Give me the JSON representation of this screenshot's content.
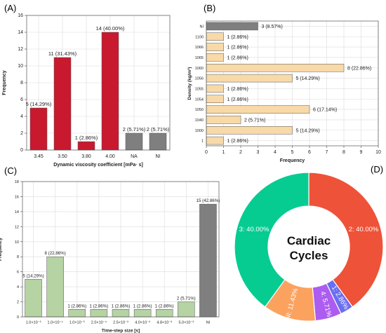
{
  "panel_labels": [
    "(A)",
    "(B)",
    "(C)",
    "(D)"
  ],
  "chart_data": [
    {
      "type": "bar",
      "panel": "(A)",
      "xlabel": "Dynamic viscosity coefficient [mPa· s]",
      "ylabel": "Frequency",
      "ylim": [
        0,
        16
      ],
      "yticks": [
        0,
        2,
        4,
        6,
        8,
        10,
        12,
        14,
        16
      ],
      "categories": [
        "3.45",
        "3.50",
        "3.80",
        "4.00",
        "NA",
        "NI"
      ],
      "values": [
        5,
        11,
        1,
        14,
        2,
        2
      ],
      "data_labels": [
        "5 (14.29%)",
        "11 (31.43%)",
        "1 (2.86%)",
        "14 (40.00%)",
        "2 (5.71%)",
        "2 (5.71%)"
      ],
      "colors": [
        "#c8192e",
        "#c8192e",
        "#c8192e",
        "#c8192e",
        "#7f7f7f",
        "#7f7f7f"
      ],
      "grid": true
    },
    {
      "type": "bar",
      "orientation": "horizontal",
      "panel": "(B)",
      "xlabel": "Frequency",
      "ylabel": "Density (kg/m³)",
      "xlim": [
        0,
        10
      ],
      "xticks": [
        0,
        1,
        2,
        3,
        4,
        5,
        6,
        7,
        8,
        9,
        10
      ],
      "categories": [
        "NI",
        "1100",
        "1066",
        "1065",
        "1060",
        "1056",
        "1055",
        "1054",
        "1050",
        "1040",
        "1000",
        "1"
      ],
      "values": [
        3,
        1,
        1,
        1,
        8,
        5,
        1,
        1,
        6,
        2,
        5,
        1
      ],
      "data_labels": [
        "3 (8.57%)",
        "1 (2.86%)",
        "1 (2.86%)",
        "1 (2.86%)",
        "8 (22.86%)",
        "5 (14.29%)",
        "1 (2.86%)",
        "1 (2.86%)",
        "6 (17.14%)",
        "2 (5.71%)",
        "5 (14.29%)",
        "1 (2.86%)"
      ],
      "colors": [
        "#7f7f7f",
        "#f8d9a8",
        "#f8d9a8",
        "#f8d9a8",
        "#f8d9a8",
        "#f8d9a8",
        "#f8d9a8",
        "#f8d9a8",
        "#f8d9a8",
        "#f8d9a8",
        "#f8d9a8",
        "#f8d9a8"
      ],
      "grid": true
    },
    {
      "type": "bar",
      "panel": "(C)",
      "xlabel": "Time-step size [s]",
      "ylabel": "Frequency",
      "ylim": [
        0,
        18
      ],
      "yticks": [
        0,
        2,
        4,
        6,
        8,
        10,
        12,
        14,
        16,
        18
      ],
      "categories": [
        "1.0×10⁻³",
        "1.0×10⁻⁴",
        "1.0×10⁻⁵",
        "2.0×10⁻⁴",
        "2.5×10⁻³",
        "4.0×10⁻³",
        "4.8×10⁻³",
        "5.0×10⁻³",
        "NI"
      ],
      "values": [
        5,
        8,
        1,
        1,
        1,
        1,
        1,
        2,
        15
      ],
      "data_labels": [
        "5 (14.29%)",
        "8 (22.86%)",
        "1 (2.86%)",
        "1 (2.86%)",
        "1 (2.86%)",
        "1 (2.86%)",
        "1 (2.86%)",
        "2 (5.71%)",
        "15 (42.86%)"
      ],
      "colors": [
        "#b5d3a3",
        "#b5d3a3",
        "#b5d3a3",
        "#b5d3a3",
        "#b5d3a3",
        "#b5d3a3",
        "#b5d3a3",
        "#b5d3a3",
        "#7f7f7f"
      ],
      "grid": true
    },
    {
      "type": "pie",
      "variant": "donut",
      "panel": "(D)",
      "center_label": [
        "Cardiac",
        "Cycles"
      ],
      "slices": [
        {
          "label": "2: 40.00%",
          "value": 40.0,
          "color": "#ee5238"
        },
        {
          "label": "1: 2.86%",
          "value": 2.86,
          "color": "#6a6ef0"
        },
        {
          "label": "4: 5.71%",
          "value": 5.71,
          "color": "#ac5cf0"
        },
        {
          "label": "NI: 11.43%",
          "value": 11.43,
          "color": "#fba25e"
        },
        {
          "label": "3: 40.00%",
          "value": 40.0,
          "color": "#06cc92"
        }
      ]
    }
  ]
}
